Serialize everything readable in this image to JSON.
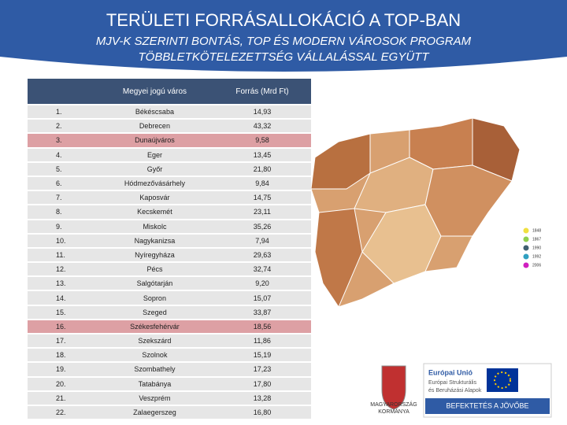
{
  "header": {
    "title": "TERÜLETI FORRÁSALLOKÁCIÓ A TOP-BAN",
    "subtitle_lines": [
      "MJV-K SZERINTI BONTÁS, TOP ÉS MODERN VÁROSOK PROGRAM",
      "TÖBBLETKÖTELEZETTSÉG VÁLLALÁSSAL EGYÜTT"
    ]
  },
  "table": {
    "columns": [
      "Megyei jogú város",
      "Forrás (Mrd Ft)"
    ],
    "rows": [
      [
        "1.",
        "Békéscsaba",
        "14,93"
      ],
      [
        "2.",
        "Debrecen",
        "43,32"
      ],
      [
        "3.",
        "Dunaújváros",
        "9,58"
      ],
      [
        "4.",
        "Eger",
        "13,45"
      ],
      [
        "5.",
        "Győr",
        "21,80"
      ],
      [
        "6.",
        "Hódmezővásárhely",
        "9,84"
      ],
      [
        "7.",
        "Kaposvár",
        "14,75"
      ],
      [
        "8.",
        "Kecskemét",
        "23,11"
      ],
      [
        "9.",
        "Miskolc",
        "35,26"
      ],
      [
        "10.",
        "Nagykanizsa",
        "7,94"
      ],
      [
        "11.",
        "Nyíregyháza",
        "29,63"
      ],
      [
        "12.",
        "Pécs",
        "32,74"
      ],
      [
        "13.",
        "Salgótarján",
        "9,20"
      ],
      [
        "14.",
        "Sopron",
        "15,07"
      ],
      [
        "15.",
        "Szeged",
        "33,87"
      ],
      [
        "16.",
        "Székesfehérvár",
        "18,56"
      ],
      [
        "17.",
        "Szekszárd",
        "11,86"
      ],
      [
        "18.",
        "Szolnok",
        "15,19"
      ],
      [
        "19.",
        "Szombathely",
        "17,23"
      ],
      [
        "20.",
        "Tatabánya",
        "17,80"
      ],
      [
        "21.",
        "Veszprém",
        "13,28"
      ],
      [
        "22.",
        "Zalaegerszeg",
        "16,80"
      ]
    ],
    "highlighted_rows": [
      2,
      15
    ]
  },
  "map_legend": [
    {
      "label": "1848",
      "color": "#f0e040"
    },
    {
      "label": "1867",
      "color": "#90d050"
    },
    {
      "label": "1990",
      "color": "#406070"
    },
    {
      "label": "1992",
      "color": "#30a0c0"
    },
    {
      "label": "2006",
      "color": "#d020c0"
    }
  ],
  "logos": {
    "government": [
      "MAGYARORSZÁG",
      "KORMÁNYA"
    ],
    "eu_title": "Európai Unió",
    "eu_lines": [
      "Európai Strukturális",
      "és Beruházási Alapok"
    ],
    "slogan": "BEFEKTETÉS A JÖVŐBE"
  }
}
